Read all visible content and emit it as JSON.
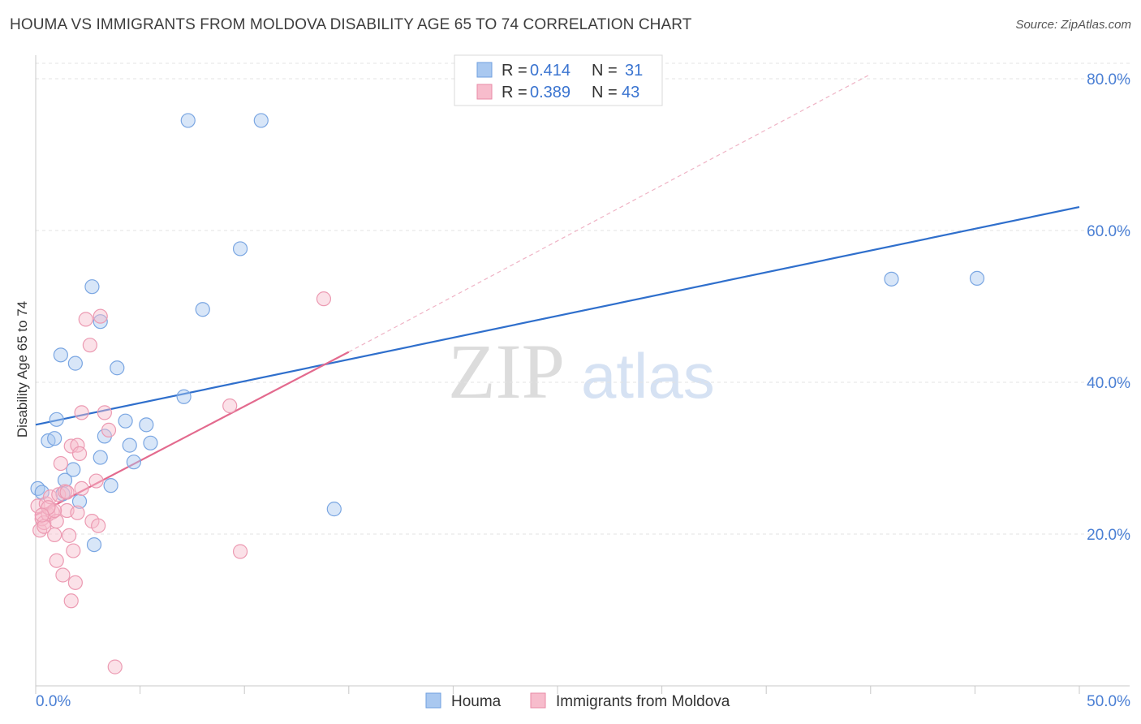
{
  "header": {
    "title": "HOUMA VS IMMIGRANTS FROM MOLDOVA DISABILITY AGE 65 TO 74 CORRELATION CHART",
    "source": "Source: ZipAtlas.com"
  },
  "watermark": {
    "zip": "ZIP",
    "atlas": "atlas"
  },
  "legend": {
    "r_label": "R =",
    "n_label": "N =",
    "entries": [
      {
        "name": "Houma",
        "r": "0.414",
        "n": "31",
        "fill": "#a9c8f0",
        "stroke": "#6f9fdf"
      },
      {
        "name": "Immigrants from Moldova",
        "r": "0.389",
        "n": "43",
        "fill": "#f7bccc",
        "stroke": "#e98aa6"
      }
    ]
  },
  "chart_data": {
    "type": "scatter",
    "title": "HOUMA VS IMMIGRANTS FROM MOLDOVA DISABILITY AGE 65 TO 74 CORRELATION CHART",
    "xlabel": "",
    "ylabel": "Disability Age 65 to 74",
    "xlim": [
      0,
      50
    ],
    "ylim": [
      0,
      81
    ],
    "x_tick_labels": [
      {
        "value": 0,
        "label": "0.0%"
      },
      {
        "value": 50,
        "label": "50.0%"
      }
    ],
    "y_tick_labels": [
      {
        "value": 20,
        "label": "20.0%"
      },
      {
        "value": 40,
        "label": "40.0%"
      },
      {
        "value": 60,
        "label": "60.0%"
      },
      {
        "value": 80,
        "label": "80.0%"
      }
    ],
    "grid": true,
    "legend_position": "top-center",
    "series": [
      {
        "name": "Houma",
        "color": "#6f9fdf",
        "points": [
          [
            0.1,
            26.0
          ],
          [
            0.6,
            32.3
          ],
          [
            0.9,
            32.6
          ],
          [
            1.0,
            35.1
          ],
          [
            1.2,
            43.6
          ],
          [
            1.3,
            25.3
          ],
          [
            1.4,
            27.1
          ],
          [
            1.8,
            28.5
          ],
          [
            1.9,
            42.5
          ],
          [
            2.1,
            24.3
          ],
          [
            2.7,
            52.6
          ],
          [
            2.8,
            18.6
          ],
          [
            3.1,
            48.0
          ],
          [
            3.1,
            30.1
          ],
          [
            3.3,
            32.9
          ],
          [
            3.6,
            26.4
          ],
          [
            3.9,
            41.9
          ],
          [
            4.3,
            34.9
          ],
          [
            4.5,
            31.7
          ],
          [
            4.7,
            29.5
          ],
          [
            5.3,
            34.4
          ],
          [
            5.5,
            32.0
          ],
          [
            7.1,
            38.1
          ],
          [
            7.3,
            74.5
          ],
          [
            8.0,
            49.6
          ],
          [
            9.8,
            57.6
          ],
          [
            10.8,
            74.5
          ],
          [
            14.3,
            23.3
          ],
          [
            41.0,
            53.6
          ],
          [
            45.1,
            53.7
          ],
          [
            0.3,
            25.5
          ]
        ],
        "trend": {
          "x": [
            0,
            50
          ],
          "y": [
            34.4,
            63.1
          ],
          "style": "solid"
        }
      },
      {
        "name": "Immigrants from Moldova",
        "color": "#e98aa6",
        "points": [
          [
            0.1,
            23.7
          ],
          [
            0.2,
            20.5
          ],
          [
            0.3,
            22.0
          ],
          [
            0.4,
            21.5
          ],
          [
            0.5,
            24.0
          ],
          [
            0.6,
            22.6
          ],
          [
            0.7,
            24.9
          ],
          [
            0.8,
            22.9
          ],
          [
            0.9,
            19.9
          ],
          [
            1.0,
            21.7
          ],
          [
            1.0,
            16.5
          ],
          [
            1.1,
            25.2
          ],
          [
            1.2,
            29.3
          ],
          [
            1.3,
            14.6
          ],
          [
            1.4,
            25.6
          ],
          [
            1.5,
            23.1
          ],
          [
            1.6,
            19.8
          ],
          [
            1.7,
            31.6
          ],
          [
            1.7,
            11.2
          ],
          [
            1.8,
            17.8
          ],
          [
            1.9,
            13.6
          ],
          [
            2.0,
            31.7
          ],
          [
            2.1,
            30.6
          ],
          [
            2.2,
            26.0
          ],
          [
            2.4,
            48.3
          ],
          [
            2.6,
            44.9
          ],
          [
            2.7,
            21.7
          ],
          [
            2.9,
            27.0
          ],
          [
            3.0,
            21.1
          ],
          [
            3.1,
            48.7
          ],
          [
            3.3,
            36.0
          ],
          [
            3.5,
            33.7
          ],
          [
            3.8,
            2.5
          ],
          [
            9.3,
            36.9
          ],
          [
            9.8,
            17.7
          ],
          [
            13.8,
            51.0
          ],
          [
            0.4,
            21.0
          ],
          [
            2.2,
            36.0
          ],
          [
            0.9,
            23.1
          ],
          [
            1.5,
            25.5
          ],
          [
            0.6,
            23.5
          ],
          [
            2.0,
            22.8
          ],
          [
            0.3,
            22.5
          ]
        ],
        "trend": {
          "x": [
            0,
            15
          ],
          "y": [
            22.5,
            44.0
          ],
          "style": "solid"
        },
        "trend_extension": {
          "x": [
            15,
            40
          ],
          "y": [
            44.0,
            80.6
          ],
          "style": "dashed"
        }
      }
    ]
  }
}
